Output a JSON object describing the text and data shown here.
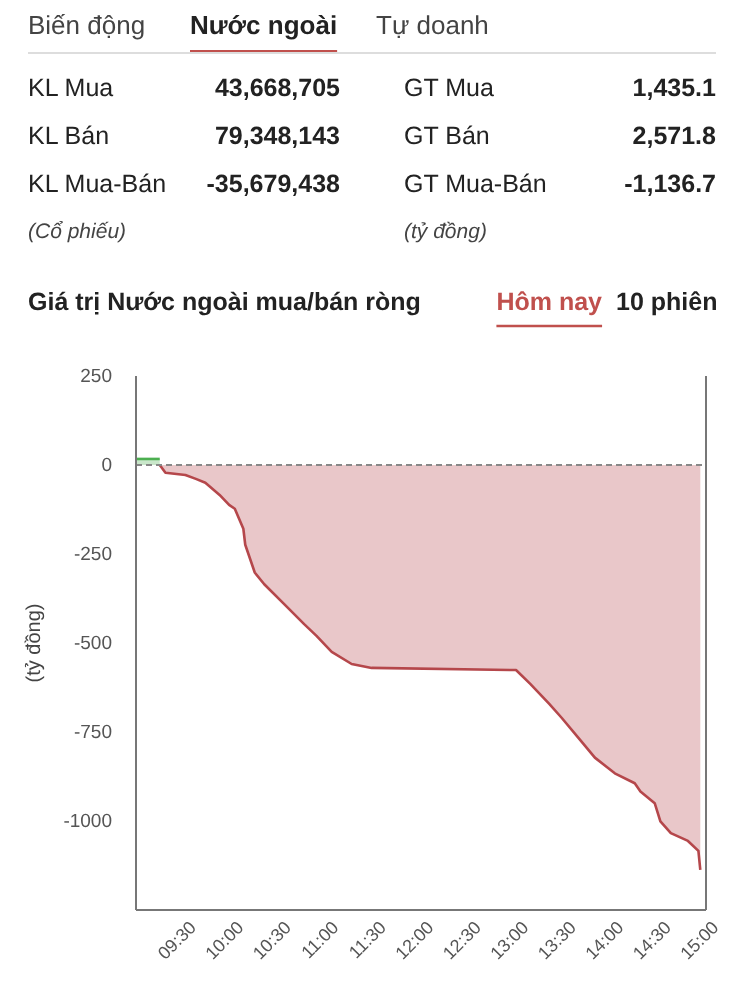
{
  "chart_data": [
    {
      "type": "other",
      "annotations": [
        "Biến động",
        "Nước ngoài",
        "Tự doanh",
        "KL Mua",
        "43,668,705",
        "GT Mua",
        "1,435.1",
        "KL Bán",
        "79,348,143",
        "GT Bán",
        "2,571.8",
        "KL Mua-Bán",
        "-35,679,438",
        "GT Mua-Bán",
        "-1,136.7",
        "(Cổ phiếu)",
        "(tỷ đồng)"
      ]
    },
    {
      "type": "area",
      "title": "Giá trị Nước ngoài mua/bán ròng",
      "ylabel": "(tỷ đồng)",
      "annotations": [
        "Hôm nay",
        "10 phiên"
      ],
      "xlim": [
        9,
        15
      ],
      "xticks": [
        {
          "value": 9.5,
          "label": "09:30"
        },
        {
          "value": 10,
          "label": "10:00"
        },
        {
          "value": 10.5,
          "label": "10:30"
        },
        {
          "value": 11,
          "label": "11:00"
        },
        {
          "value": 11.5,
          "label": "11:30"
        },
        {
          "value": 12,
          "label": "12:00"
        },
        {
          "value": 12.5,
          "label": "12:30"
        },
        {
          "value": 13,
          "label": "13:00"
        },
        {
          "value": 13.5,
          "label": "13:30"
        },
        {
          "value": 14,
          "label": "14:00"
        },
        {
          "value": 14.5,
          "label": "14:30"
        },
        {
          "value": 15,
          "label": "15:00"
        }
      ],
      "ylim": [
        -1250,
        250
      ],
      "yticks": [
        250,
        0,
        -250,
        -500,
        -750,
        -1000
      ],
      "grid": false,
      "ref_lines": [
        {
          "axis": "y",
          "value": 0,
          "color": "#888888",
          "line_style": "dashed"
        }
      ],
      "series": [
        {
          "color": "#4caf50",
          "x": [
            9,
            9.25
          ],
          "values": [
            17,
            17
          ]
        },
        {
          "color": "#b5474b",
          "x": [
            9.25,
            9.31,
            9.52,
            9.63,
            9.73,
            9.88,
            9.98,
            10.04,
            10.13,
            10.15,
            10.25,
            10.35,
            10.56,
            10.77,
            10.9,
            11.06,
            11.27,
            11.48,
            13,
            13.15,
            13.35,
            13.48,
            13.69,
            13.83,
            14.04,
            14.25,
            14.31,
            14.46,
            14.52,
            14.63,
            14.81,
            14.92,
            14.94
          ],
          "values": [
            0,
            -22,
            -28,
            -39,
            -50,
            -84,
            -112,
            -123,
            -179,
            -224,
            -302,
            -335,
            -391,
            -447,
            -480,
            -525,
            -559,
            -570,
            -576,
            -615,
            -671,
            -710,
            -777,
            -822,
            -866,
            -894,
            -917,
            -950,
            -1001,
            -1034,
            -1056,
            -1084,
            -1137
          ]
        }
      ]
    }
  ]
}
